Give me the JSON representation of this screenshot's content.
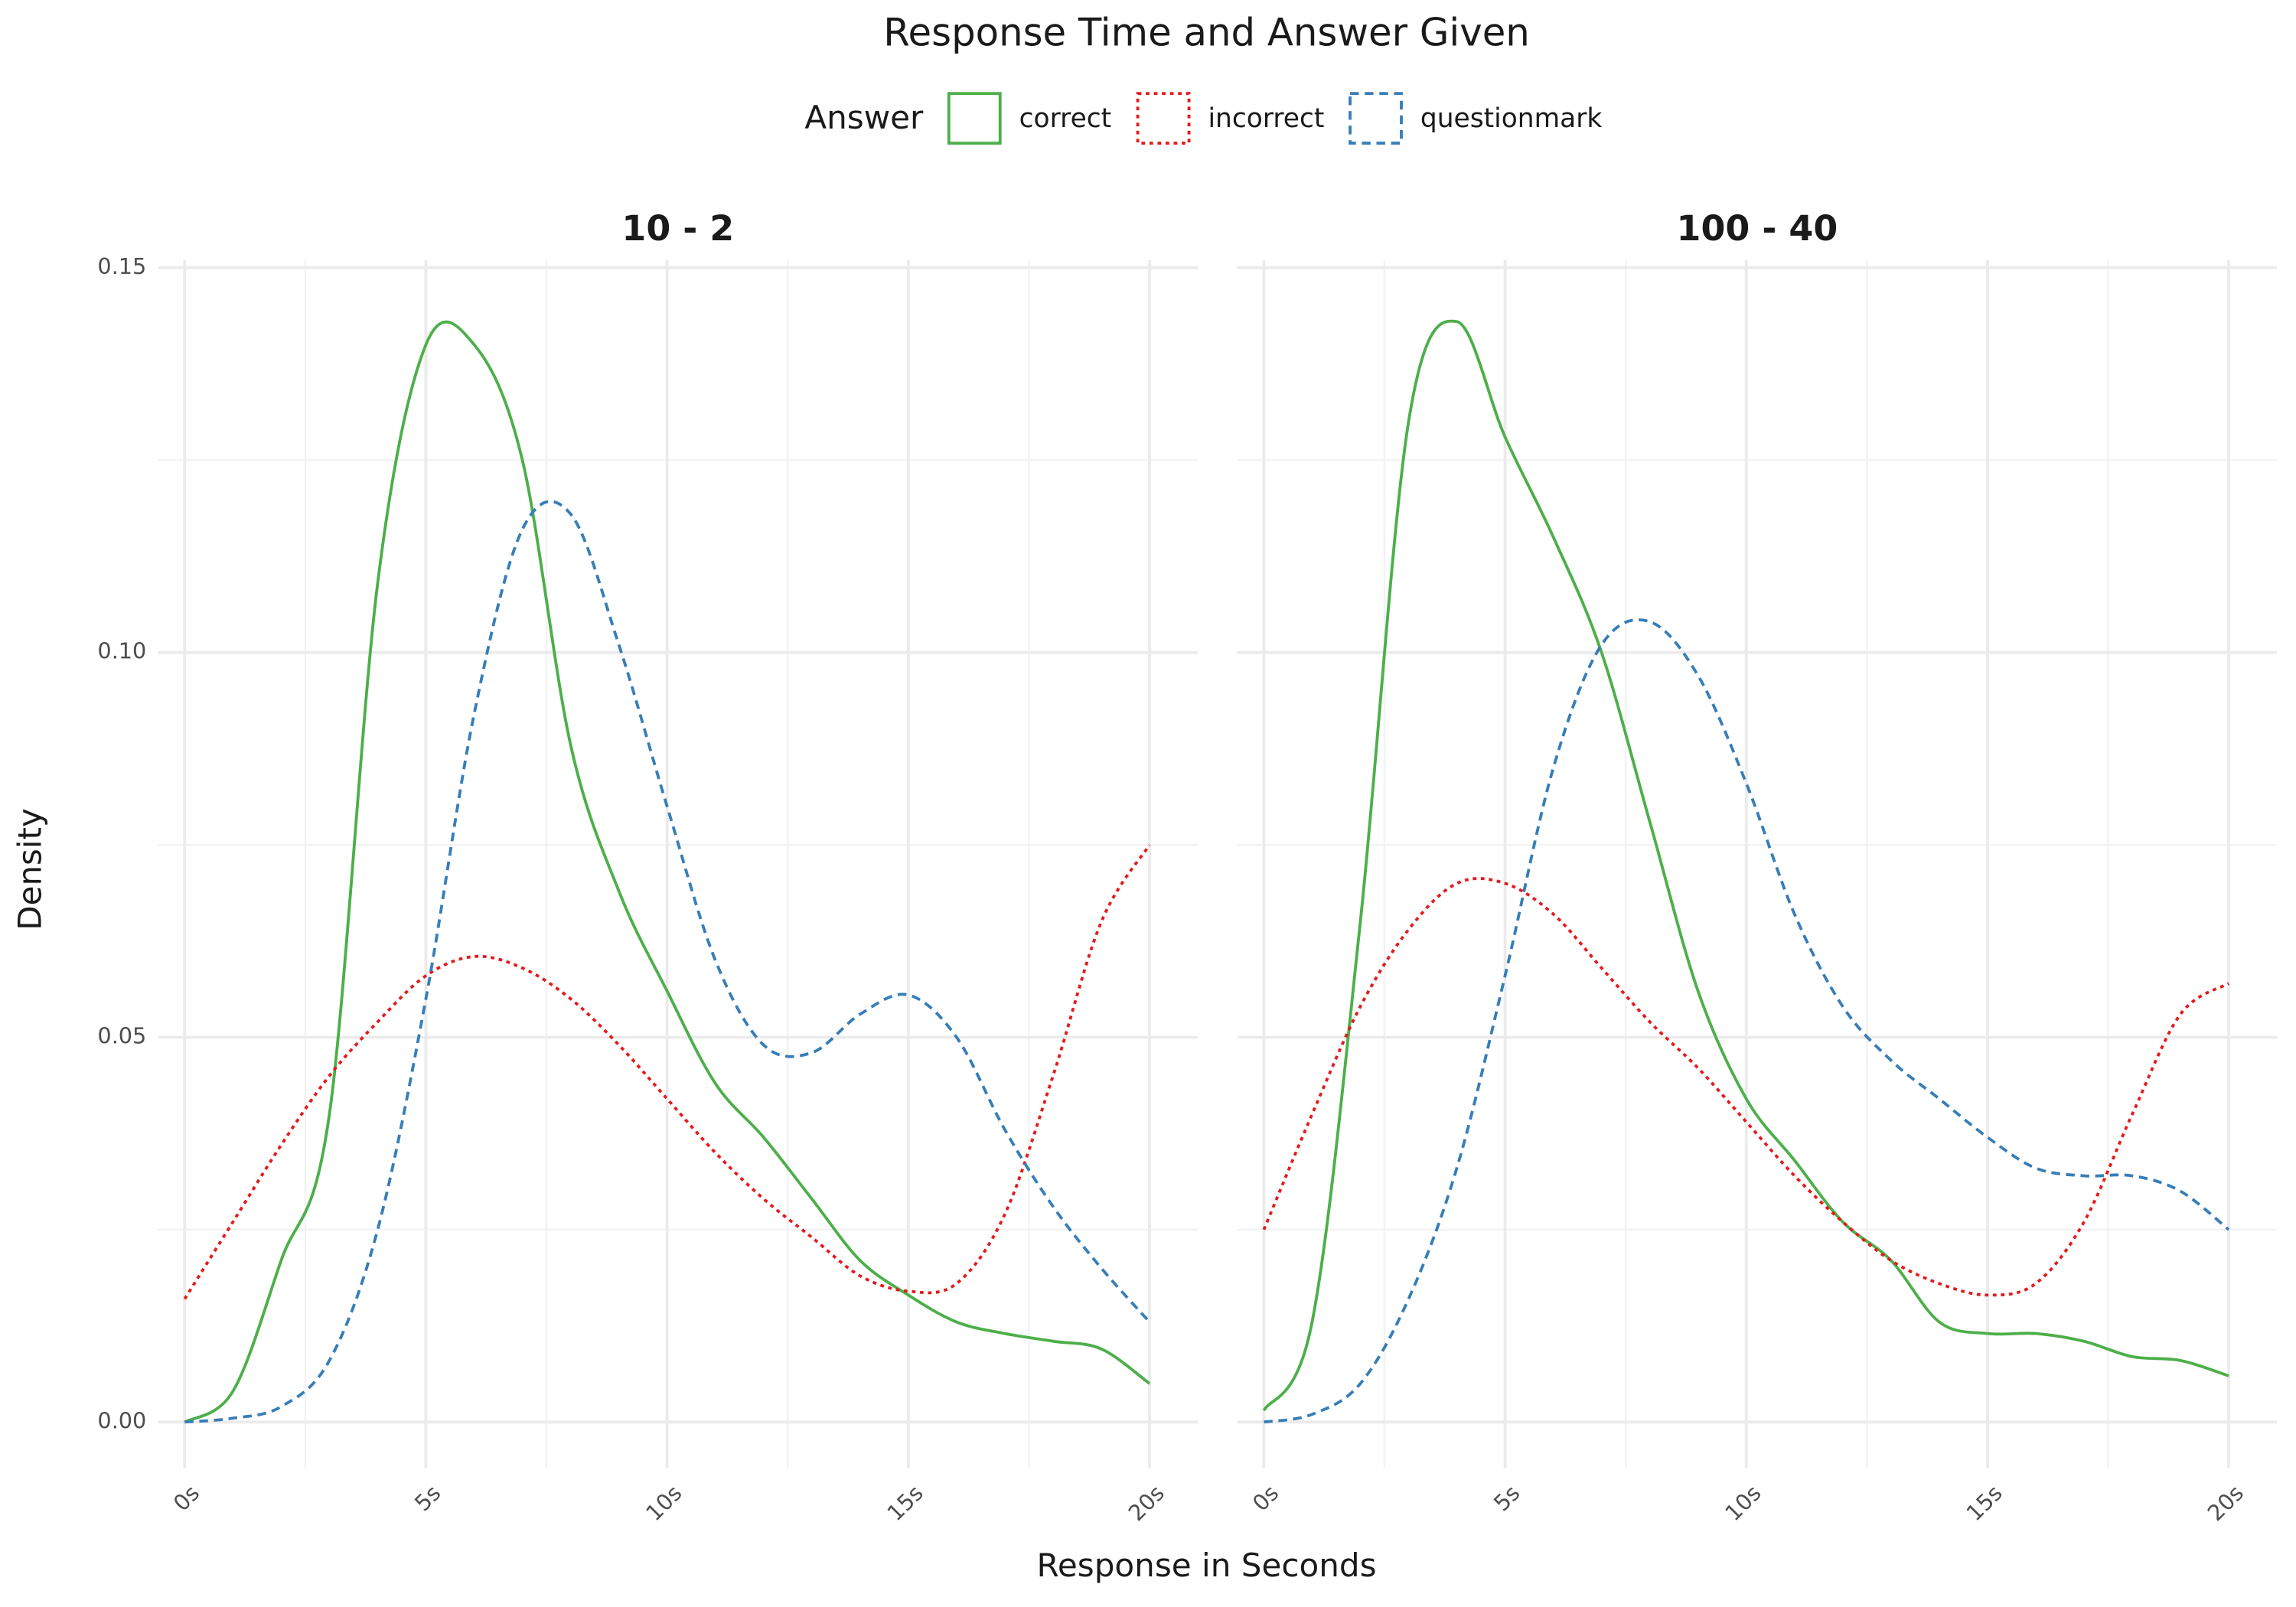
{
  "chart_data": {
    "type": "line",
    "title": "Response Time and Answer Given",
    "legend_title": "Answer",
    "legend": "top",
    "x_label": "Response in Seconds",
    "y_label": "Density",
    "grid": true,
    "minor_grid": true,
    "ylim": [
      -0.006,
      0.151
    ],
    "yticks": [
      {
        "value": 0,
        "label": "0.00"
      },
      0.05,
      {
        "value": 0.1,
        "label": "0.10"
      },
      0.15
    ],
    "facets": [
      {
        "title": "10 - 2",
        "xlim": [
          -0.55,
          21
        ],
        "xticks": [
          {
            "value": 0,
            "label": "0s"
          },
          {
            "value": 5,
            "label": "5s"
          },
          {
            "value": 10,
            "label": "10s"
          },
          {
            "value": 15,
            "label": "15s"
          },
          {
            "value": 20,
            "label": "20s"
          }
        ],
        "x": [
          0,
          1,
          2,
          3,
          4,
          5,
          6,
          7,
          8,
          9,
          10,
          11,
          12,
          13,
          14,
          15,
          16,
          17,
          18,
          19,
          20
        ],
        "series": [
          {
            "name": "correct",
            "color": "#4daf4a",
            "linetype": "solid",
            "values": [
              0,
              0.004,
              0.021,
              0.04,
              0.109,
              0.14,
              0.14,
              0.125,
              0.088,
              0.069,
              0.056,
              0.044,
              0.037,
              0.029,
              0.021,
              0.0165,
              0.013,
              0.0115,
              0.0105,
              0.0095,
              0.005
            ]
          },
          {
            "name": "incorrect",
            "color": "#e41a1c",
            "linetype": "dotted",
            "values": [
              0.016,
              0.026,
              0.036,
              0.045,
              0.052,
              0.058,
              0.0605,
              0.059,
              0.055,
              0.049,
              0.042,
              0.035,
              0.029,
              0.024,
              0.019,
              0.017,
              0.018,
              0.027,
              0.045,
              0.065,
              0.075
            ]
          },
          {
            "name": "questionmark",
            "color": "#377eb8",
            "linetype": "dashed",
            "values": [
              0,
              0.0005,
              0.002,
              0.008,
              0.025,
              0.055,
              0.092,
              0.116,
              0.118,
              0.101,
              0.08,
              0.06,
              0.049,
              0.048,
              0.053,
              0.0555,
              0.05,
              0.038,
              0.028,
              0.02,
              0.013
            ]
          }
        ]
      },
      {
        "title": "100 - 40",
        "xlim": [
          -0.55,
          21
        ],
        "xticks": [
          {
            "value": 0,
            "label": "0s"
          },
          {
            "value": 5,
            "label": "5s"
          },
          {
            "value": 10,
            "label": "10s"
          },
          {
            "value": 15,
            "label": "15s"
          },
          {
            "value": 20,
            "label": "20s"
          }
        ],
        "x": [
          0,
          1,
          2,
          3,
          4,
          5,
          6,
          7,
          8,
          9,
          10,
          11,
          12,
          13,
          14,
          15,
          16,
          17,
          18,
          19,
          20
        ],
        "series": [
          {
            "name": "correct",
            "color": "#4daf4a",
            "linetype": "solid",
            "values": [
              0.0015,
              0.013,
              0.065,
              0.13,
              0.143,
              0.128,
              0.115,
              0.1,
              0.078,
              0.056,
              0.042,
              0.034,
              0.026,
              0.021,
              0.013,
              0.0115,
              0.0115,
              0.0105,
              0.0085,
              0.008,
              0.006
            ]
          },
          {
            "name": "incorrect",
            "color": "#e41a1c",
            "linetype": "dotted",
            "values": [
              0.025,
              0.04,
              0.054,
              0.064,
              0.07,
              0.07,
              0.066,
              0.059,
              0.052,
              0.046,
              0.039,
              0.032,
              0.026,
              0.021,
              0.018,
              0.0165,
              0.018,
              0.026,
              0.04,
              0.053,
              0.057
            ]
          },
          {
            "name": "questionmark",
            "color": "#377eb8",
            "linetype": "dashed",
            "values": [
              0,
              0.001,
              0.005,
              0.016,
              0.033,
              0.058,
              0.085,
              0.101,
              0.104,
              0.097,
              0.083,
              0.066,
              0.054,
              0.047,
              0.042,
              0.037,
              0.033,
              0.032,
              0.032,
              0.03,
              0.025
            ]
          }
        ]
      }
    ]
  }
}
